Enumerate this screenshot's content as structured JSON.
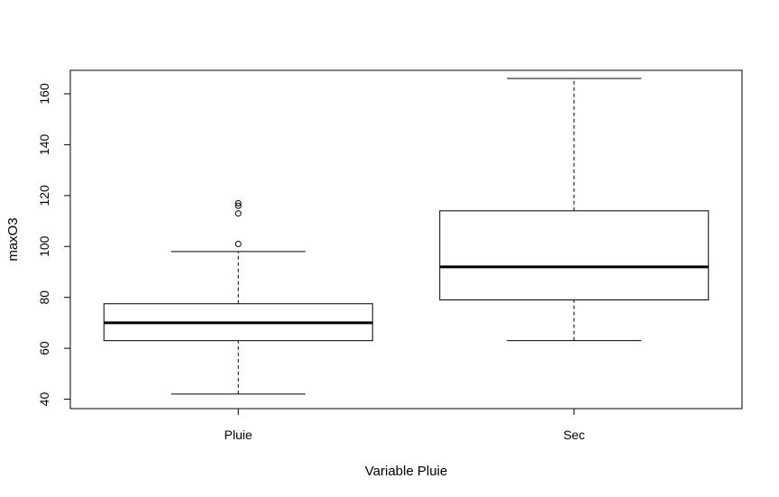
{
  "chart_data": {
    "type": "boxplot",
    "title": "",
    "xlabel": "Variable Pluie",
    "ylabel": "maxO3",
    "ylim": [
      36.3,
      169.2
    ],
    "yticks": [
      40,
      60,
      80,
      100,
      120,
      140,
      160
    ],
    "categories": [
      "Pluie",
      "Sec"
    ],
    "boxes": [
      {
        "category": "Pluie",
        "whisker_low": 42,
        "q1": 63,
        "median": 70,
        "q3": 77.5,
        "whisker_high": 98,
        "outliers": [
          101,
          113,
          116,
          117
        ]
      },
      {
        "category": "Sec",
        "whisker_low": 63,
        "q1": 79,
        "median": 92,
        "q3": 114,
        "whisker_high": 166,
        "outliers": []
      }
    ],
    "grid": false,
    "legend": "none"
  }
}
